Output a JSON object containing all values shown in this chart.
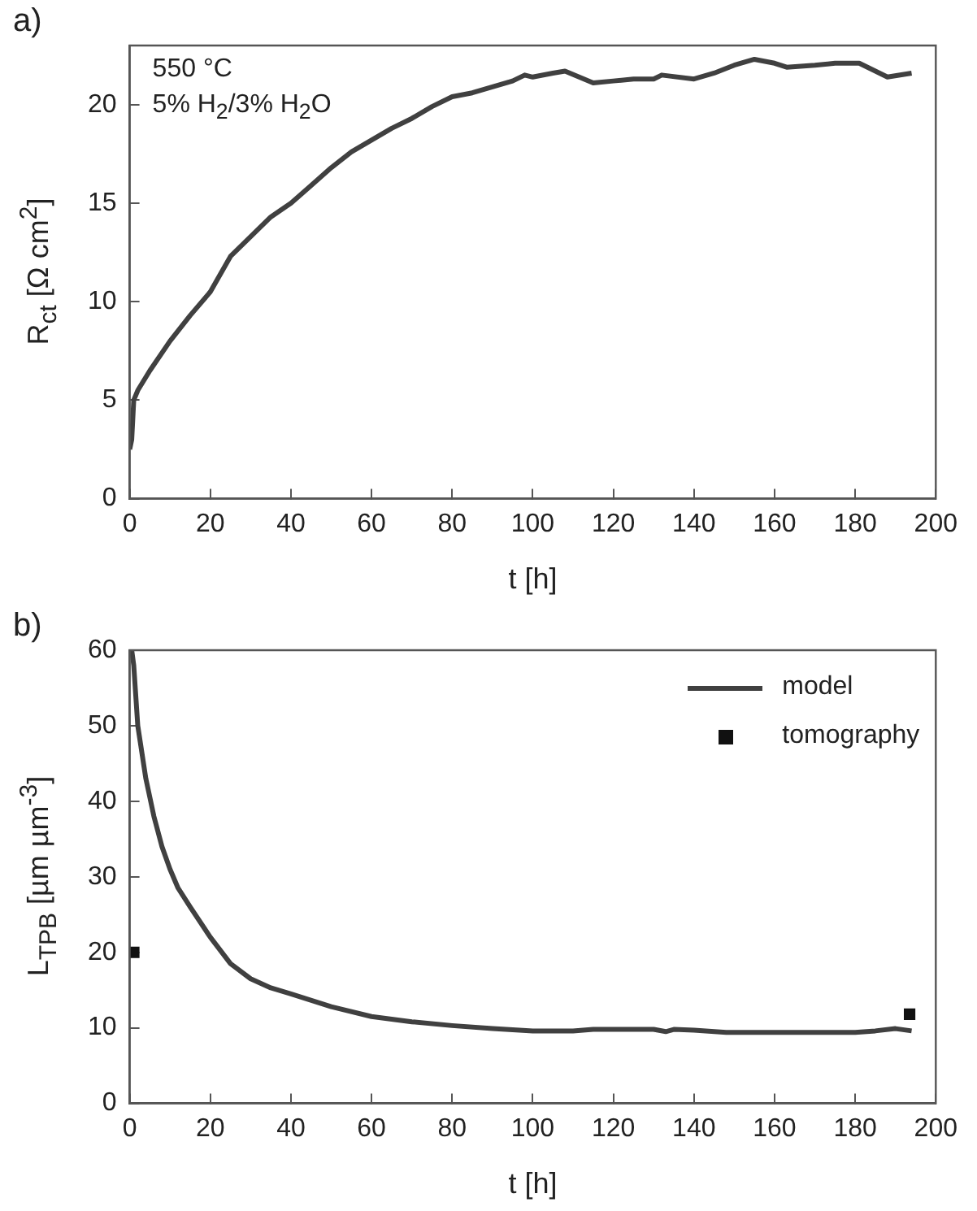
{
  "chart_data": [
    {
      "type": "line",
      "title": "a)",
      "xlabel": "t [h]",
      "ylabel": "R$_{ct}$ [Ω cm$^{2}$]",
      "annotations": [
        "550 °C",
        "5% H$_{2}$/3% H$_{2}$O"
      ],
      "xlim": [
        0,
        200
      ],
      "xticks": [
        0,
        20,
        40,
        60,
        80,
        100,
        120,
        140,
        160,
        180,
        200
      ],
      "ylim": [
        0,
        23
      ],
      "yticks": [
        0,
        5,
        10,
        15,
        20
      ],
      "grid": false,
      "legend": false,
      "marker": "none",
      "line_style": "solid",
      "series": [
        {
          "color": "#404040",
          "x": [
            0,
            0.5,
            1,
            2,
            5,
            10,
            15,
            20,
            25,
            30,
            35,
            40,
            45,
            50,
            55,
            60,
            65,
            70,
            75,
            80,
            85,
            90,
            95,
            98,
            100,
            105,
            108,
            115,
            120,
            125,
            130,
            132,
            140,
            145,
            150,
            155,
            160,
            163,
            170,
            175,
            181,
            188,
            194
          ],
          "values": [
            2.5,
            3,
            5,
            5.5,
            6.5,
            8,
            9.3,
            10.5,
            12.3,
            13.3,
            14.3,
            15,
            15.9,
            16.8,
            17.6,
            18.2,
            18.8,
            19.3,
            19.9,
            20.4,
            20.6,
            20.9,
            21.2,
            21.5,
            21.4,
            21.6,
            21.7,
            21.1,
            21.2,
            21.3,
            21.3,
            21.5,
            21.3,
            21.6,
            22,
            22.3,
            22.1,
            21.9,
            22,
            22.1,
            22.1,
            21.4,
            21.6
          ]
        }
      ]
    },
    {
      "type": "line",
      "title": "b)",
      "xlabel": "t [h]",
      "ylabel": "L$_{TPB}$ [µm µm$^{-3}$]",
      "xlim": [
        0,
        200
      ],
      "xticks": [
        0,
        20,
        40,
        60,
        80,
        100,
        120,
        140,
        160,
        180,
        200
      ],
      "ylim": [
        0,
        60
      ],
      "yticks": [
        0,
        10,
        20,
        30,
        40,
        50,
        60
      ],
      "grid": false,
      "legend": "top right",
      "line_style": "solid",
      "series": [
        {
          "name": "model",
          "type": "line",
          "marker": "none",
          "color": "#404040",
          "x": [
            0.5,
            1,
            2,
            4,
            6,
            8,
            10,
            12,
            15,
            20,
            25,
            30,
            35,
            40,
            50,
            60,
            70,
            80,
            90,
            100,
            110,
            115,
            130,
            133,
            135,
            140,
            148,
            180,
            185,
            190,
            194
          ],
          "values": [
            60,
            58,
            50,
            43,
            38,
            34,
            31,
            28.5,
            26,
            22,
            18.5,
            16.5,
            15.3,
            14.5,
            12.8,
            11.5,
            10.8,
            10.3,
            9.9,
            9.6,
            9.6,
            9.8,
            9.8,
            9.5,
            9.8,
            9.7,
            9.4,
            9.4,
            9.6,
            9.9,
            9.6
          ]
        },
        {
          "name": "tomography",
          "type": "scatter",
          "marker": "square",
          "color": "#111111",
          "x": [
            1,
            193.5
          ],
          "values": [
            20,
            11.8
          ]
        }
      ]
    }
  ]
}
